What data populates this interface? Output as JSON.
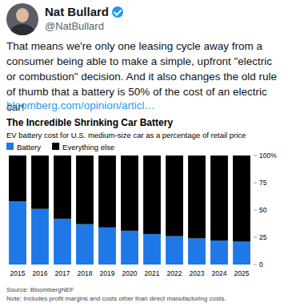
{
  "tweet": {
    "author": "Nat Bullard",
    "handle": "@NatBullard",
    "text": "That means we're only one leasing cycle away from a consumer being able to make a simple, upfront \"electric or combustion\" decision. And it also changes the old rule of thumb that a battery is 50% of the cost of an electric car!",
    "link": "bloomberg.com/opinion/articl…"
  },
  "chart_data": {
    "type": "bar",
    "stacked": true,
    "title": "The Incredible Shrinking Car Battery",
    "subtitle": "EV battery cost for U.S. medium-size car as a percentage of retail price",
    "categories": [
      "2015",
      "2016",
      "2017",
      "2018",
      "2019",
      "2020",
      "2021",
      "2022",
      "2023",
      "2024",
      "2025"
    ],
    "series": [
      {
        "name": "Battery",
        "color": "#1f78e6",
        "values": [
          58,
          51,
          42,
          37,
          34,
          31,
          28,
          26,
          24,
          22,
          21
        ]
      },
      {
        "name": "Everything else",
        "color": "#000000",
        "values": [
          42,
          49,
          58,
          63,
          66,
          69,
          72,
          74,
          76,
          78,
          79
        ]
      }
    ],
    "ylim": [
      0,
      100
    ],
    "yticks": [
      0,
      25,
      50,
      75,
      {
        "value": 100,
        "label": "100%"
      }
    ],
    "grid": false,
    "legend": "top-left",
    "source": "Source: BloombergNEF",
    "note": "Note: Includes profit margins and costs other than direct manufacturing costs."
  }
}
